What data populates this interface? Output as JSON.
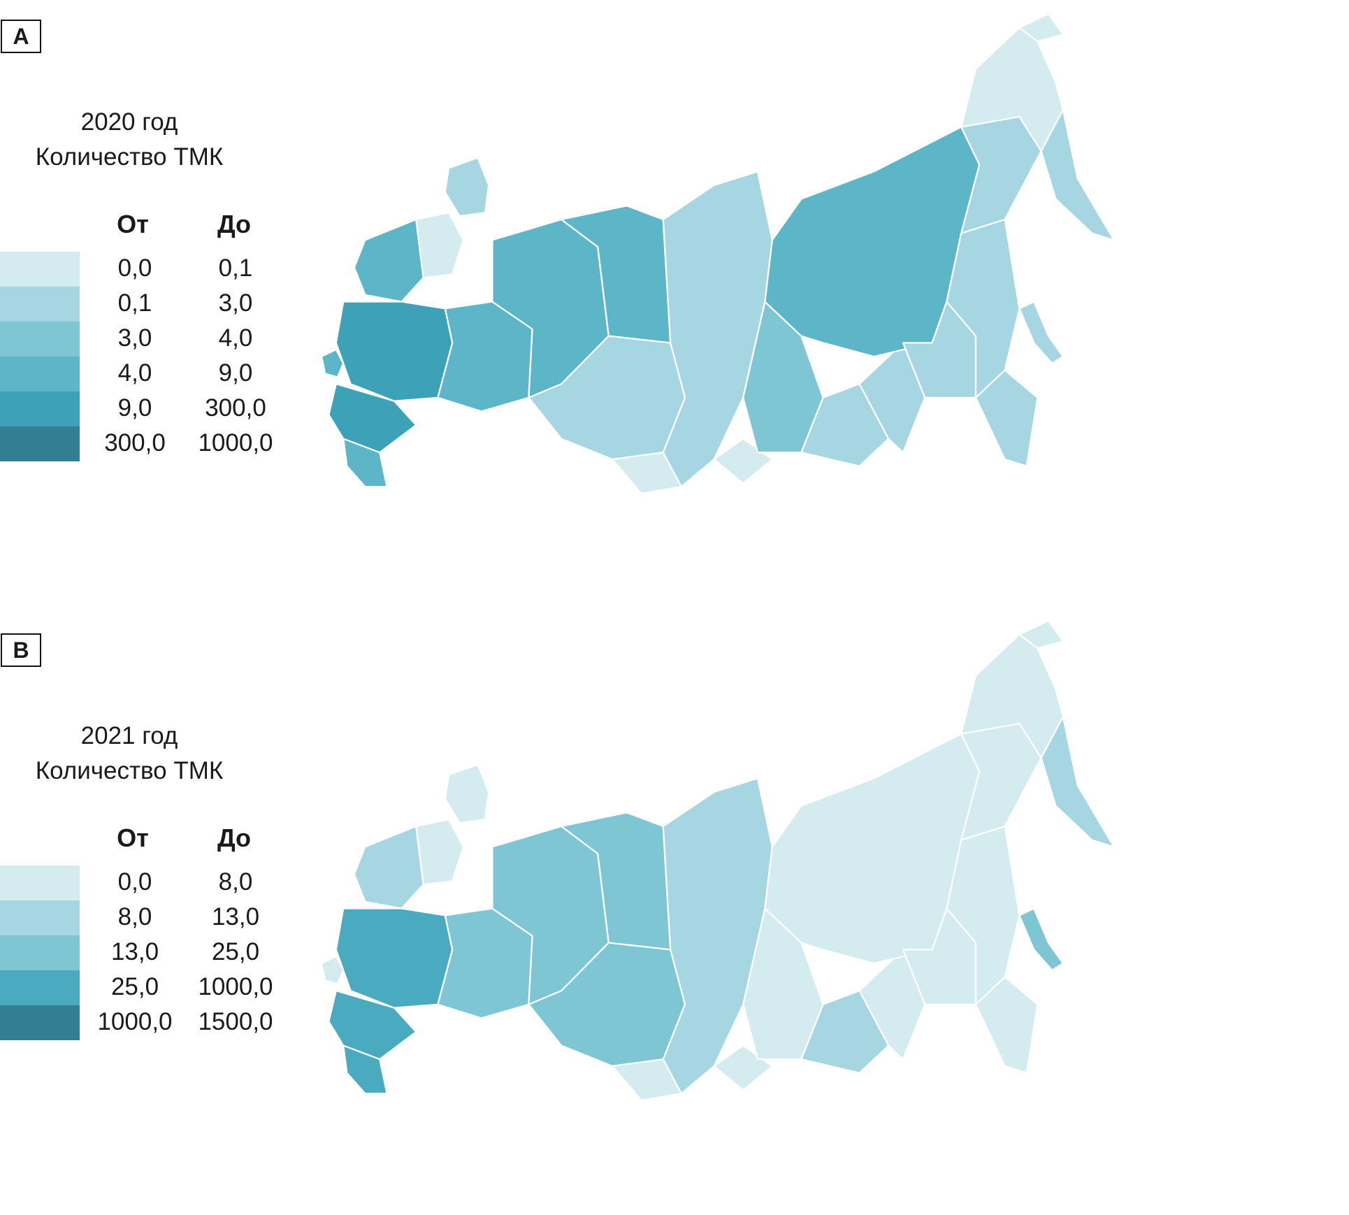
{
  "panels": [
    {
      "letter": "A",
      "title_line1": "2020 год",
      "title_line2": "Количество ТМК",
      "col_from": "От",
      "col_to": "До",
      "legend": [
        {
          "from": "0,0",
          "to": "0,1",
          "color": "#d4ebf0"
        },
        {
          "from": "0,1",
          "to": "3,0",
          "color": "#a6d6e1"
        },
        {
          "from": "3,0",
          "to": "4,0",
          "color": "#7fc6d5"
        },
        {
          "from": "4,0",
          "to": "9,0",
          "color": "#5db6c8"
        },
        {
          "from": "9,0",
          "to": "300,0",
          "color": "#3da2b8"
        },
        {
          "from": "300,0",
          "to": "1000,0",
          "color": "#347e92"
        }
      ],
      "region_classes": {
        "far-east-north": 0,
        "far-east-chukotka": 0,
        "kamchatka": 1,
        "yakutia": 3,
        "magadan": 1,
        "khabarovsk": 1,
        "amur": 1,
        "sakhalin": 1,
        "primorye": 1,
        "krasnoyarsk": 1,
        "irkutsk": 2,
        "buryatia": 1,
        "zabaikalye": 1,
        "tyumen-north": 3,
        "urals": 3,
        "siberia-south": 1,
        "altai": 0,
        "tuva": 0,
        "north-west": 3,
        "kola": 1,
        "karelia": 0,
        "central": 4,
        "moscow": 5,
        "volga": 3,
        "south": 4,
        "caucasus": 3,
        "kaliningrad": 3
      }
    },
    {
      "letter": "B",
      "title_line1": "2021 год",
      "title_line2": "Количество ТМК",
      "col_from": "От",
      "col_to": "До",
      "legend": [
        {
          "from": "0,0",
          "to": "8,0",
          "color": "#d4ebf0"
        },
        {
          "from": "8,0",
          "to": "13,0",
          "color": "#a6d6e1"
        },
        {
          "from": "13,0",
          "to": "25,0",
          "color": "#7fc6d5"
        },
        {
          "from": "25,0",
          "to": "1000,0",
          "color": "#4aaac0"
        },
        {
          "from": "1000,0",
          "to": "1500,0",
          "color": "#347e92"
        }
      ],
      "region_classes": {
        "far-east-north": 0,
        "far-east-chukotka": 0,
        "kamchatka": 1,
        "yakutia": 0,
        "magadan": 0,
        "khabarovsk": 0,
        "amur": 0,
        "sakhalin": 2,
        "primorye": 0,
        "krasnoyarsk": 1,
        "irkutsk": 0,
        "buryatia": 1,
        "zabaikalye": 0,
        "tyumen-north": 2,
        "urals": 2,
        "siberia-south": 2,
        "altai": 0,
        "tuva": 0,
        "north-west": 1,
        "kola": 0,
        "karelia": 0,
        "central": 3,
        "moscow": 4,
        "volga": 2,
        "south": 3,
        "caucasus": 3,
        "kaliningrad": 0
      }
    }
  ]
}
